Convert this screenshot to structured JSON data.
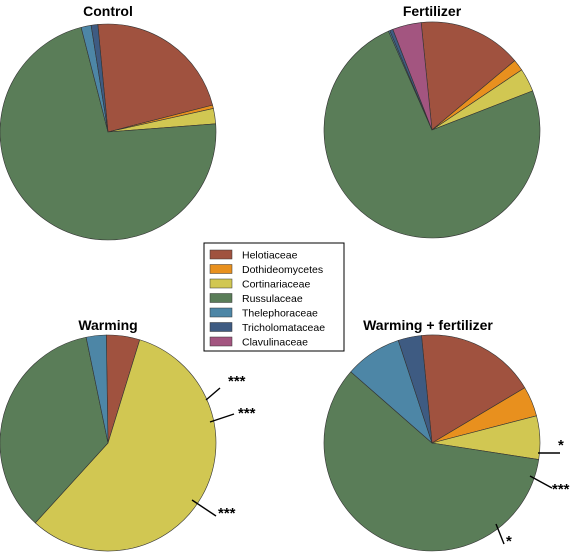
{
  "chart_data": [
    {
      "type": "pie",
      "title": "Control",
      "categories": [
        "Helotiaceae",
        "Dothideomycetes",
        "Cortinariaceae",
        "Russulaceae",
        "Thelephoraceae",
        "Tricholomataceae",
        "Clavulinaceae"
      ],
      "values": [
        22.5,
        0.5,
        2.3,
        72.2,
        1.5,
        1.0,
        0.0
      ],
      "annotations": []
    },
    {
      "type": "pie",
      "title": "Fertilizer",
      "categories": [
        "Helotiaceae",
        "Dothideomycetes",
        "Cortinariaceae",
        "Russulaceae",
        "Thelephoraceae",
        "Tricholomataceae",
        "Clavulinaceae"
      ],
      "values": [
        15.5,
        1.7,
        3.5,
        74.3,
        0.2,
        0.5,
        4.3
      ],
      "annotations": []
    },
    {
      "type": "pie",
      "title": "Warming",
      "categories": [
        "Helotiaceae",
        "Dothideomycetes",
        "Cortinariaceae",
        "Russulaceae",
        "Thelephoraceae",
        "Tricholomataceae",
        "Clavulinaceae"
      ],
      "values": [
        5.0,
        0.0,
        57.0,
        35.0,
        3.0,
        0.0,
        0.0
      ],
      "annotations": [
        {
          "category": "Cortinariaceae",
          "text": "***"
        },
        {
          "category": "Helotiaceae",
          "text": "***"
        },
        {
          "category": "Russulaceae",
          "text": "***"
        }
      ]
    },
    {
      "type": "pie",
      "title": "Warming +  fertilizer",
      "categories": [
        "Helotiaceae",
        "Dothideomycetes",
        "Cortinariaceae",
        "Russulaceae",
        "Thelephoraceae",
        "Tricholomataceae",
        "Clavulinaceae"
      ],
      "values": [
        18.0,
        4.5,
        6.5,
        59.0,
        8.5,
        3.5,
        0.0
      ],
      "annotations": [
        {
          "category": "Tricholomataceae",
          "text": "*"
        },
        {
          "category": "Thelephoraceae",
          "text": "***"
        },
        {
          "category": "Russulaceae",
          "text": "*"
        }
      ]
    }
  ],
  "legend": {
    "placement": "center",
    "items": [
      {
        "label": "Helotiaceae",
        "color": "#a0523f"
      },
      {
        "label": "Dothideomycetes",
        "color": "#e8901e"
      },
      {
        "label": "Cortinariaceae",
        "color": "#d1c752"
      },
      {
        "label": "Russulaceae",
        "color": "#5a7d58"
      },
      {
        "label": "Thelephoraceae",
        "color": "#4d86a6"
      },
      {
        "label": "Tricholomataceae",
        "color": "#3e5b82"
      },
      {
        "label": "Clavulinaceae",
        "color": "#a35580"
      }
    ]
  }
}
